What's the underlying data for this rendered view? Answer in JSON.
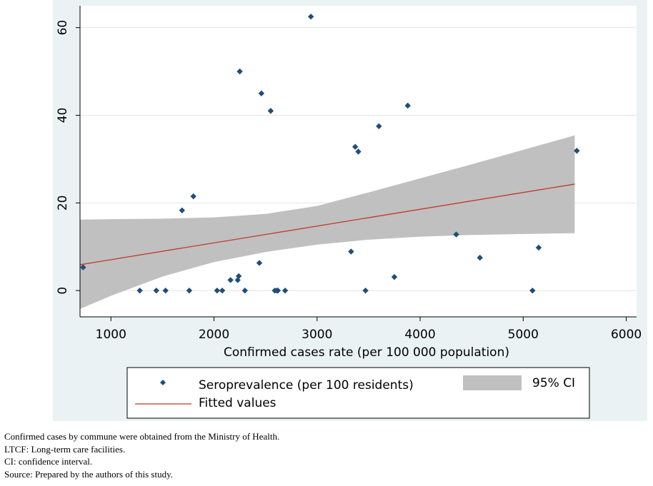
{
  "chart_data": {
    "type": "scatter",
    "title": "",
    "xlabel": "Confirmed cases rate (per 100 000 population)",
    "ylabel": "",
    "xlim": [
      700,
      6100
    ],
    "ylim": [
      -6,
      65
    ],
    "xticks": [
      1000,
      2000,
      3000,
      4000,
      5000,
      6000
    ],
    "yticks": [
      0,
      20,
      40,
      60
    ],
    "grid": true,
    "legend": {
      "placement": "bottom",
      "entries": [
        "Seroprevalence (per 100 residents)",
        "95% CI",
        "Fitted values"
      ]
    },
    "series": [
      {
        "name": "Seroprevalence (per 100 residents)",
        "kind": "points",
        "color": "#1f4e79",
        "points": [
          [
            730,
            5.3
          ],
          [
            1280,
            0
          ],
          [
            1440,
            0
          ],
          [
            1530,
            0
          ],
          [
            1690,
            18.3
          ],
          [
            1760,
            0
          ],
          [
            1800,
            21.5
          ],
          [
            2030,
            0
          ],
          [
            2080,
            0
          ],
          [
            2160,
            2.4
          ],
          [
            2230,
            2.4
          ],
          [
            2240,
            3.3
          ],
          [
            2250,
            50
          ],
          [
            2300,
            0
          ],
          [
            2440,
            6.3
          ],
          [
            2460,
            45
          ],
          [
            2550,
            41
          ],
          [
            2590,
            0
          ],
          [
            2610,
            0
          ],
          [
            2620,
            0
          ],
          [
            2690,
            0
          ],
          [
            2940,
            62.5
          ],
          [
            3330,
            8.9
          ],
          [
            3370,
            32.8
          ],
          [
            3400,
            31.7
          ],
          [
            3470,
            0
          ],
          [
            3600,
            37.5
          ],
          [
            3750,
            3.1
          ],
          [
            3880,
            42.2
          ],
          [
            4350,
            12.8
          ],
          [
            4580,
            7.5
          ],
          [
            5090,
            0
          ],
          [
            5150,
            9.8
          ],
          [
            5520,
            31.9
          ]
        ]
      },
      {
        "name": "Fitted values",
        "kind": "line",
        "color": "#c0392b",
        "x": [
          700,
          5500
        ],
        "y": [
          5.9,
          24.3
        ]
      }
    ],
    "ci": {
      "name": "95% CI",
      "color": "#c0c0c0",
      "x": [
        700,
        1000,
        1500,
        2000,
        2500,
        3000,
        3500,
        4000,
        4500,
        5000,
        5500
      ],
      "lower": [
        -4.2,
        -1.2,
        3.2,
        6.5,
        8.8,
        10.5,
        11.6,
        12.3,
        12.7,
        12.9,
        13.1
      ],
      "upper": [
        16.2,
        16.3,
        16.4,
        16.7,
        17.5,
        19.3,
        22.4,
        25.6,
        28.8,
        32.1,
        35.4
      ]
    }
  },
  "notes": [
    "Confirmed cases by commune were obtained from the Ministry of Health.",
    "LTCF: Long-term care facilities.",
    "CI: confidence interval.",
    "Source: Prepared by the authors of this study."
  ]
}
